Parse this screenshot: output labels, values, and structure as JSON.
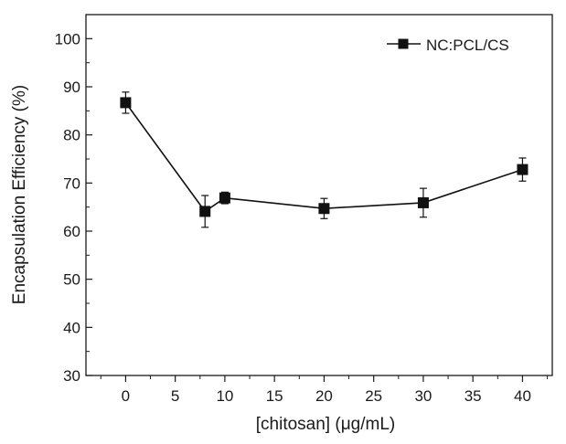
{
  "chart_data": {
    "type": "line",
    "xlabel": "[chitosan] (μg/mL)",
    "ylabel": "Encapsulation Efficiency (%)",
    "xlim": [
      -4,
      43
    ],
    "ylim": [
      30,
      105
    ],
    "xticks": [
      0,
      5,
      10,
      15,
      20,
      25,
      30,
      35,
      40
    ],
    "yticks": [
      30,
      40,
      50,
      60,
      70,
      80,
      90,
      100
    ],
    "legend_position": "top-right",
    "grid": false,
    "series": [
      {
        "name": "NC:PCL/CS",
        "marker": "square",
        "color": "#111111",
        "x": [
          0,
          8,
          10,
          20,
          30,
          40
        ],
        "y": [
          86.7,
          64.1,
          66.9,
          64.7,
          65.9,
          72.8
        ],
        "error": [
          2.2,
          3.3,
          1.2,
          2.1,
          3.0,
          2.4
        ]
      }
    ]
  }
}
